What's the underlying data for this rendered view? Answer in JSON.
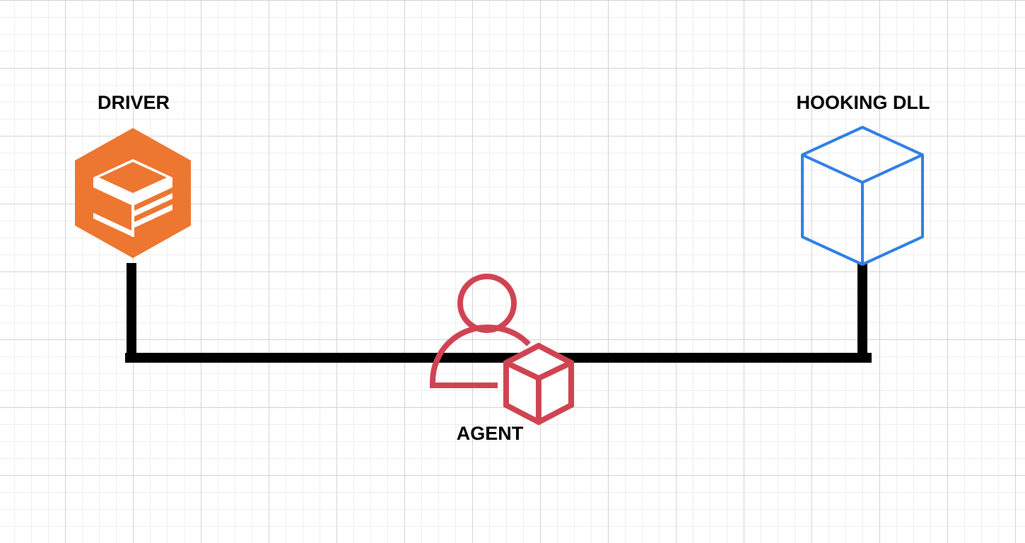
{
  "nodes": {
    "driver": {
      "label": "DRIVER",
      "icon": "driver-storage-icon",
      "color": "#ED7630"
    },
    "hooking_dll": {
      "label": "HOOKING DLL",
      "icon": "cube-icon",
      "color": "#2F7FE6"
    },
    "agent": {
      "label": "AGENT",
      "icon": "user-with-cube-icon",
      "color": "#CF4452"
    }
  },
  "connector": {
    "color": "#000000"
  }
}
